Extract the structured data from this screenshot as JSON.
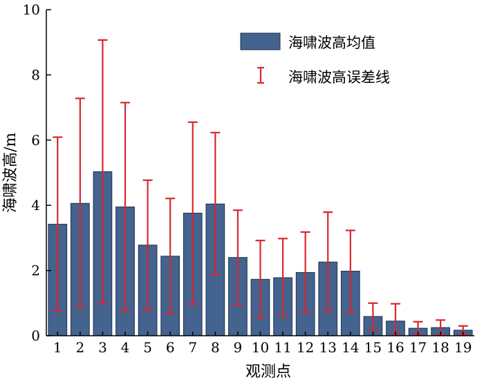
{
  "chart_data": {
    "type": "bar",
    "xlabel": "观测点",
    "ylabel": "海啸波高/m",
    "ylim": [
      0,
      10
    ],
    "yticks": [
      0,
      2,
      4,
      6,
      8,
      10
    ],
    "categories": [
      "1",
      "2",
      "3",
      "4",
      "5",
      "6",
      "7",
      "8",
      "9",
      "10",
      "11",
      "12",
      "13",
      "14",
      "15",
      "16",
      "17",
      "18",
      "19"
    ],
    "series": [
      {
        "name": "海啸波高均值",
        "values": [
          3.42,
          4.06,
          5.03,
          3.95,
          2.78,
          2.44,
          3.76,
          4.04,
          2.4,
          1.73,
          1.78,
          1.94,
          2.26,
          1.98,
          0.59,
          0.45,
          0.23,
          0.25,
          0.17
        ],
        "error_upper": [
          6.09,
          7.28,
          9.07,
          7.15,
          4.77,
          4.21,
          6.55,
          6.23,
          3.85,
          2.92,
          2.98,
          3.18,
          3.79,
          3.23,
          1.0,
          0.98,
          0.43,
          0.48,
          0.3
        ],
        "error_lower": [
          0.76,
          0.86,
          0.99,
          0.75,
          0.79,
          0.68,
          0.97,
          1.85,
          0.95,
          0.55,
          0.6,
          0.69,
          0.74,
          0.73,
          0.18,
          0.07,
          0.04,
          0.03,
          0.04
        ]
      }
    ],
    "legend": {
      "position": "top-right",
      "bar_label": "海啸波高均值",
      "error_label": "海啸波高误差线"
    },
    "colors": {
      "bar_fill": "#44638f",
      "bar_stroke": "#1f2f4a",
      "error": "#d9262c",
      "axis": "#000000"
    },
    "grid": false
  }
}
